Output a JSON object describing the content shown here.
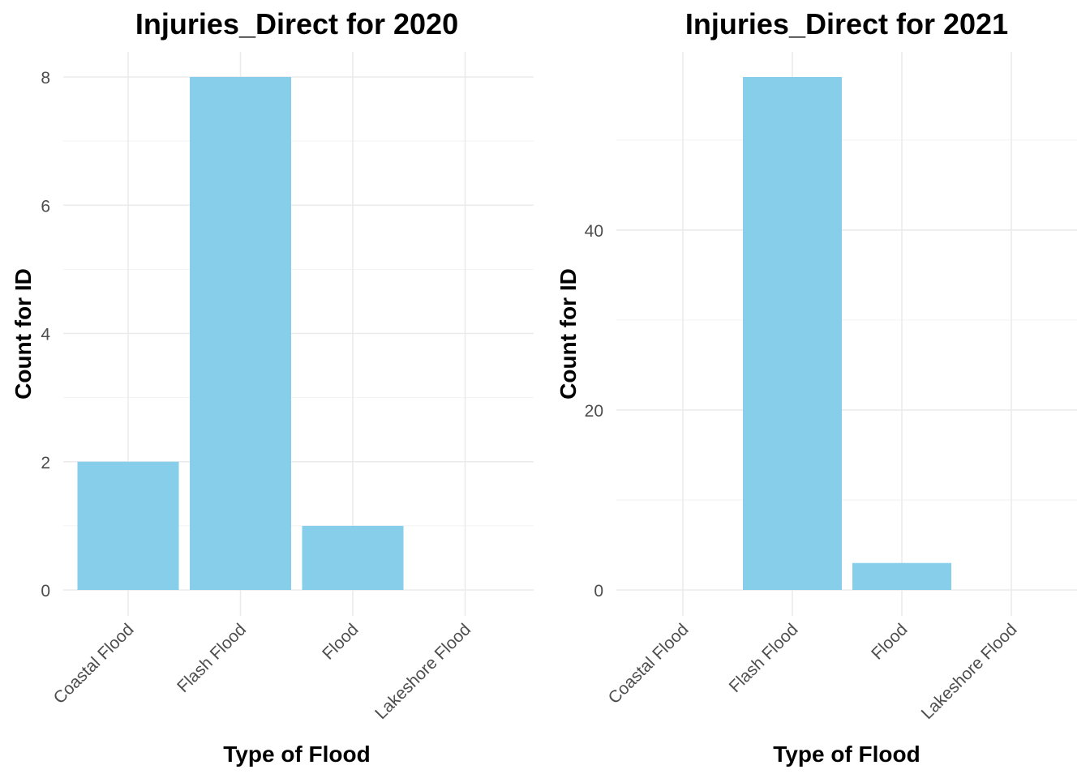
{
  "colors": {
    "bar": "#87CEEB",
    "grid_major": "#EBEBEB",
    "grid_minor": "#F2F2F2",
    "tick_text": "#4D4D4D"
  },
  "chart_data": [
    {
      "type": "bar",
      "title": "Injuries_Direct for 2020",
      "xlabel": "Type of Flood",
      "ylabel": "Count for ID",
      "categories": [
        "Coastal Flood",
        "Flash Flood",
        "Flood",
        "Lakeshore Flood"
      ],
      "values": [
        2,
        8,
        1,
        0
      ],
      "ylim": [
        0,
        8
      ],
      "yticks": [
        0,
        2,
        4,
        6,
        8
      ],
      "grid": true,
      "legend": "none"
    },
    {
      "type": "bar",
      "title": "Injuries_Direct for 2021",
      "xlabel": "Type of Flood",
      "ylabel": "Count for ID",
      "categories": [
        "Coastal Flood",
        "Flash Flood",
        "Flood",
        "Lakeshore Flood"
      ],
      "values": [
        0,
        57,
        3,
        0
      ],
      "ylim": [
        0,
        57
      ],
      "yticks": [
        0,
        20,
        40
      ],
      "grid": true,
      "legend": "none"
    }
  ]
}
